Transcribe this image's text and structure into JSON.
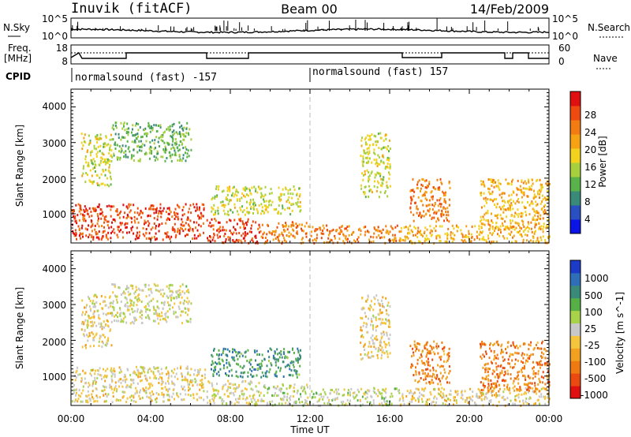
{
  "header": {
    "station": "Inuvik (fitACF)",
    "beam": "Beam 00",
    "date": "14/Feb/2009"
  },
  "noise_panel": {
    "left_label": "N.Sky",
    "right_label": "N.Search",
    "left_ticks": [
      "10^5",
      "10^0"
    ],
    "right_ticks": [
      "10^5",
      "10^0"
    ]
  },
  "freq_panel": {
    "left_label_1": "Freq.",
    "left_label_2": "[MHz]",
    "right_label": "Nave",
    "left_ticks": [
      "18",
      "8"
    ],
    "right_ticks": [
      "60",
      "0"
    ]
  },
  "cpid": {
    "label": "CPID",
    "mode_1": "normalsound (fast) -157",
    "mode_2": "normalsound (fast) 157",
    "switch_time_hours": 12.0
  },
  "x_axis": {
    "title": "Time UT",
    "ticks": [
      "00:00",
      "04:00",
      "08:00",
      "12:00",
      "16:00",
      "20:00",
      "00:00"
    ],
    "range_hours": [
      0,
      24
    ]
  },
  "power_panel": {
    "ylabel": "Slant Range [km]",
    "yticks": [
      "4000",
      "3000",
      "2000",
      "1000"
    ],
    "colorbar_title": "Power [dB]",
    "colorbar_ticks": [
      "28",
      "24",
      "20",
      "16",
      "12",
      "8",
      "4"
    ],
    "colors": [
      "#0a14e6",
      "#2a4fc0",
      "#3a8a7a",
      "#5ab24a",
      "#a8cf3c",
      "#f2d21c",
      "#f5a313",
      "#f27b12",
      "#ef4a10",
      "#e01010"
    ]
  },
  "velocity_panel": {
    "ylabel": "Slant Range [km]",
    "yticks": [
      "4000",
      "3000",
      "2000",
      "1000"
    ],
    "colorbar_title": "Velocity [m s^-1]",
    "colorbar_ticks": [
      "1000",
      "500",
      "100",
      "25",
      "-25",
      "-100",
      "-500",
      "-1000"
    ],
    "colors": [
      "#1c3cc8",
      "#2f6fb8",
      "#3a8a7a",
      "#56b046",
      "#a8d24a",
      "#c8c8c8",
      "#f4c43c",
      "#f2a020",
      "#f07a12",
      "#ea4a10",
      "#e01010"
    ]
  },
  "chart_data": {
    "type": "heatmap",
    "title": "Inuvik (fitACF) Beam 00 14/Feb/2009",
    "xlabel": "Time UT",
    "ylabel": "Slant Range [km]",
    "xlim_hours": [
      0,
      24
    ],
    "ylim_km": [
      180,
      4500
    ],
    "panels": [
      "Power [dB]",
      "Velocity [m s^-1]"
    ],
    "power_scale_db": [
      0,
      32
    ],
    "velocity_scale_ms": [
      -1000,
      1000
    ],
    "echo_regions": [
      {
        "t": [
          0.0,
          6.7
        ],
        "r": [
          300,
          1300
        ],
        "power": 28,
        "velocity": -100
      },
      {
        "t": [
          0.5,
          2.0
        ],
        "r": [
          1800,
          3300
        ],
        "power": 16,
        "velocity": -100
      },
      {
        "t": [
          2.0,
          6.0
        ],
        "r": [
          2500,
          3600
        ],
        "power": 12,
        "velocity": 25
      },
      {
        "t": [
          6.8,
          9.5
        ],
        "r": [
          200,
          900
        ],
        "power": 28,
        "velocity": -25
      },
      {
        "t": [
          7.0,
          11.5
        ],
        "r": [
          1000,
          1800
        ],
        "power": 16,
        "velocity": 500
      },
      {
        "t": [
          9.5,
          12.0
        ],
        "r": [
          200,
          800
        ],
        "power": 24,
        "velocity": 100
      },
      {
        "t": [
          12.0,
          16.5
        ],
        "r": [
          200,
          700
        ],
        "power": 24,
        "velocity": 100
      },
      {
        "t": [
          14.5,
          16.0
        ],
        "r": [
          1500,
          3300
        ],
        "power": 16,
        "velocity": -100
      },
      {
        "t": [
          16.5,
          24.0
        ],
        "r": [
          200,
          700
        ],
        "power": 20,
        "velocity": -100
      },
      {
        "t": [
          17.0,
          19.0
        ],
        "r": [
          800,
          2000
        ],
        "power": 24,
        "velocity": -500
      },
      {
        "t": [
          20.5,
          24.0
        ],
        "r": [
          600,
          2000
        ],
        "power": 20,
        "velocity": -500
      }
    ]
  }
}
